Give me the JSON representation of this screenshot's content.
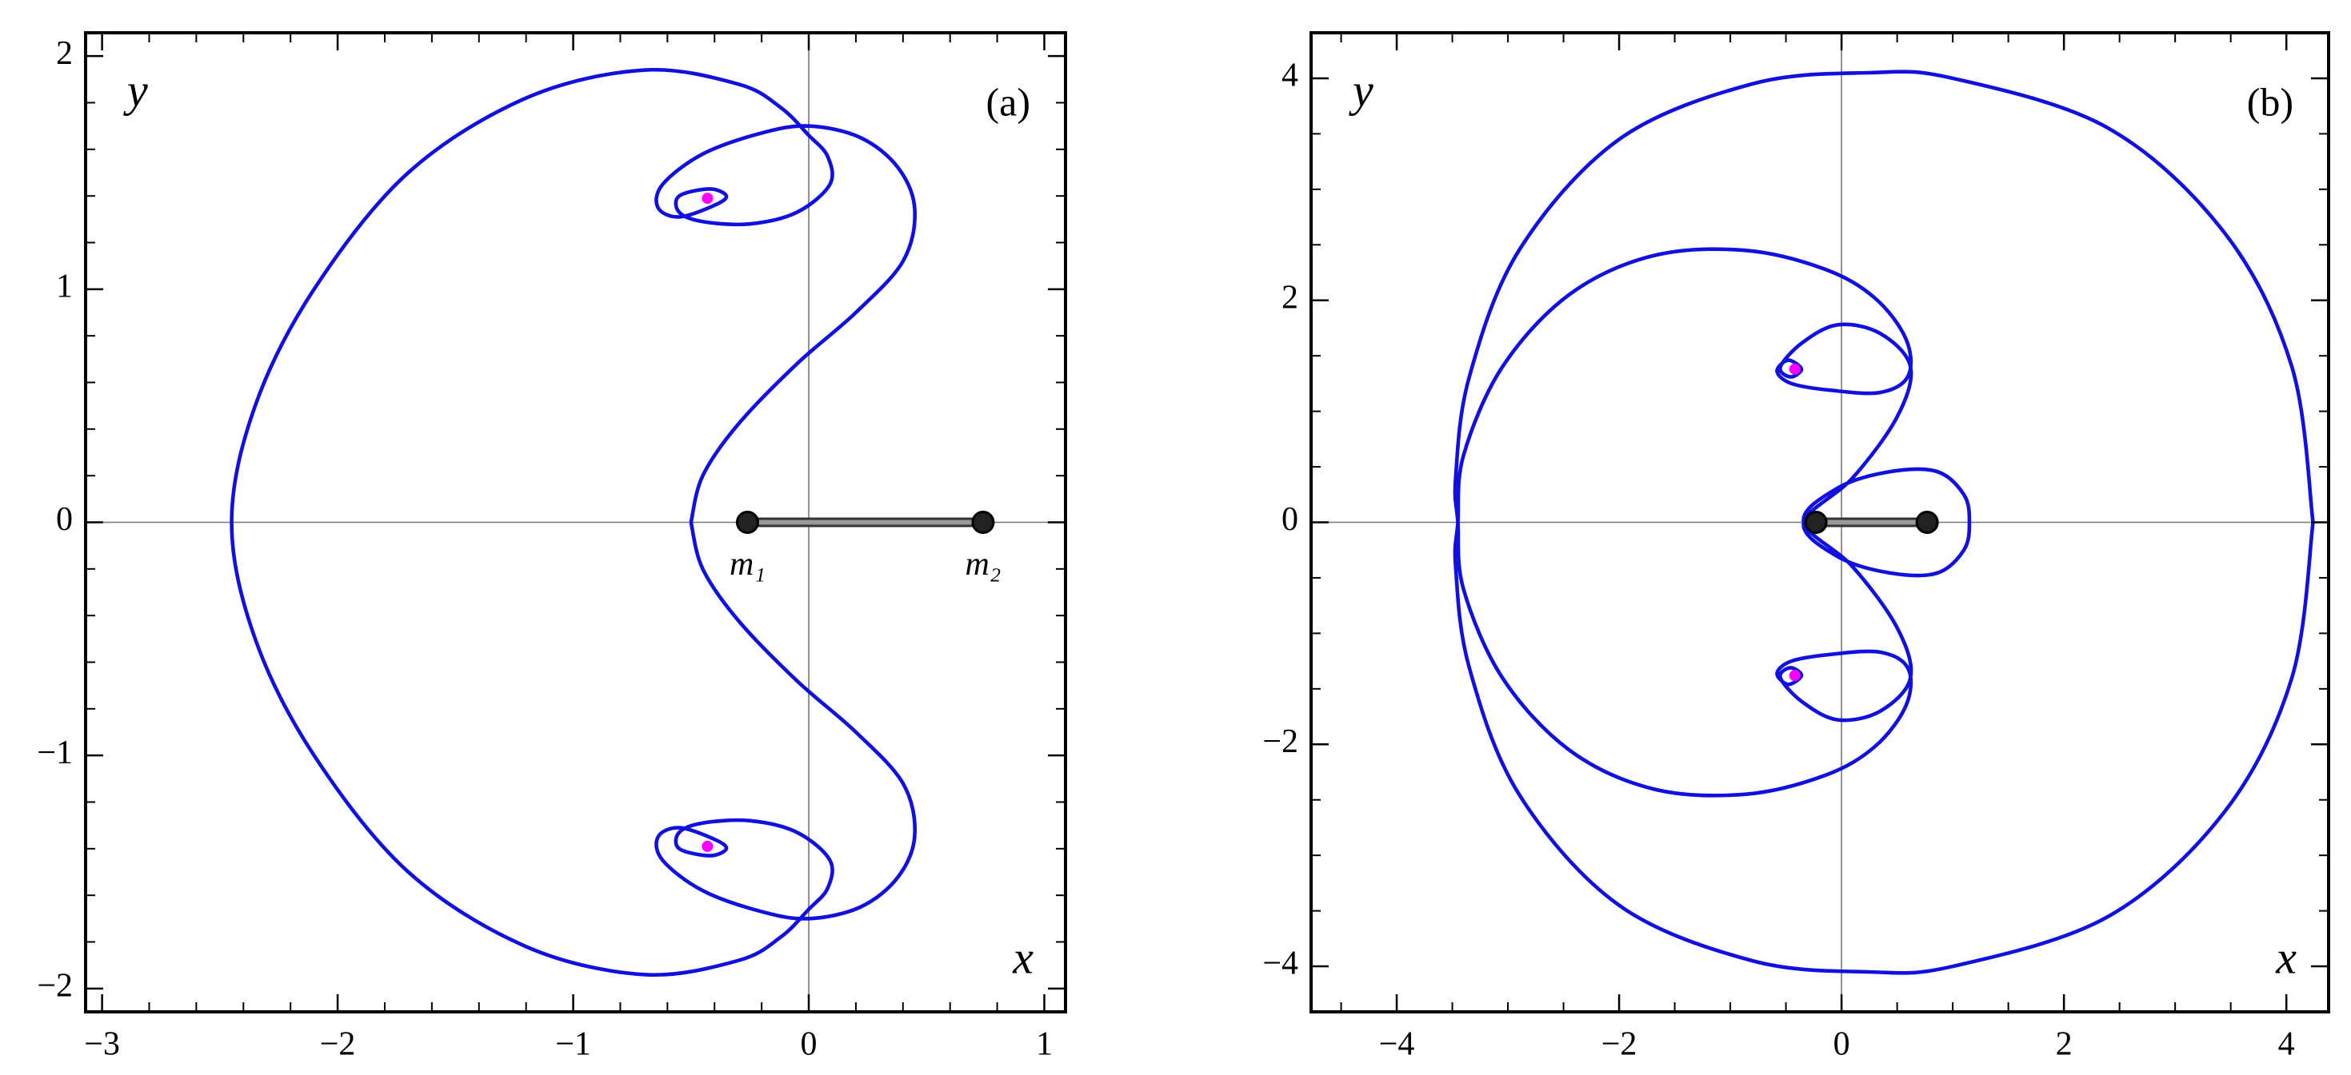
{
  "chart_data": [
    {
      "type": "line",
      "label": "(a)",
      "xlabel": "x",
      "ylabel": "y",
      "xlim": [
        -3.07,
        1.09
      ],
      "ylim": [
        -2.1,
        2.1
      ],
      "xticks": [
        {
          "value": -3,
          "label": "−3"
        },
        {
          "value": -2,
          "label": "−2"
        },
        {
          "value": -1,
          "label": "−1"
        },
        0,
        1
      ],
      "yticks": [
        {
          "value": -2,
          "label": "−2"
        },
        {
          "value": -1,
          "label": "−1"
        },
        0,
        1,
        2
      ],
      "xminor": [
        -2.8,
        -2.6,
        -2.4,
        -2.2,
        -1.8,
        -1.6,
        -1.4,
        -1.2,
        -0.8,
        -0.6,
        -0.4,
        -0.2,
        0.2,
        0.4,
        0.6,
        0.8
      ],
      "yminor": [
        -1.8,
        -1.6,
        -1.4,
        -1.2,
        -0.8,
        -0.6,
        -0.4,
        -0.2,
        0.2,
        0.4,
        0.6,
        0.8,
        1.2,
        1.4,
        1.6,
        1.8
      ],
      "zero_axes": true,
      "series": [
        {
          "mode": "line",
          "color": "#1010e0",
          "x": [
            -0.5,
            -0.45,
            -0.3,
            -0.05,
            0.2,
            0.4,
            0.45,
            0.38,
            0.22,
            0.0,
            -0.2,
            -0.45,
            -0.62,
            -0.64,
            -0.55,
            -0.4,
            -0.35,
            -0.42,
            -0.55,
            -0.55,
            -0.45,
            -0.25,
            -0.05,
            0.09,
            0.08,
            0.0,
            -0.12,
            -0.3,
            -0.7,
            -1.2,
            -1.7,
            -2.1,
            -2.35,
            -2.45,
            -2.35,
            -2.1,
            -1.7,
            -1.2,
            -0.7,
            -0.3,
            -0.12,
            0.0,
            0.08,
            0.09,
            -0.05,
            -0.25,
            -0.45,
            -0.55,
            -0.55,
            -0.42,
            -0.35,
            -0.4,
            -0.55,
            -0.64,
            -0.62,
            -0.45,
            -0.2,
            0.0,
            0.22,
            0.38,
            0.45,
            0.4,
            0.2,
            -0.05,
            -0.3,
            -0.45,
            -0.5
          ],
          "values": [
            0.0,
            0.2,
            0.42,
            0.68,
            0.9,
            1.12,
            1.34,
            1.52,
            1.65,
            1.7,
            1.67,
            1.58,
            1.45,
            1.35,
            1.31,
            1.36,
            1.4,
            1.43,
            1.4,
            1.33,
            1.29,
            1.28,
            1.33,
            1.45,
            1.57,
            1.66,
            1.78,
            1.88,
            1.94,
            1.82,
            1.5,
            1.0,
            0.5,
            0.0,
            -0.5,
            -1.0,
            -1.5,
            -1.82,
            -1.94,
            -1.88,
            -1.78,
            -1.66,
            -1.57,
            -1.45,
            -1.33,
            -1.28,
            -1.29,
            -1.33,
            -1.4,
            -1.43,
            -1.4,
            -1.36,
            -1.31,
            -1.35,
            -1.45,
            -1.58,
            -1.67,
            -1.7,
            -1.65,
            -1.52,
            -1.34,
            -1.12,
            -0.9,
            -0.68,
            -0.42,
            -0.2,
            0.0
          ]
        },
        {
          "mode": "markers",
          "connect": true,
          "color": "#000000",
          "x": [
            -0.26,
            0.74
          ],
          "values": [
            0,
            0
          ],
          "point_labels": [
            "m₁",
            "m₂"
          ]
        },
        {
          "mode": "markers",
          "color": "#ff00ff",
          "x": [
            -0.43,
            -0.43
          ],
          "values": [
            1.39,
            -1.39
          ]
        }
      ]
    },
    {
      "type": "line",
      "label": "(b)",
      "xlabel": "x",
      "ylabel": "y",
      "xlim": [
        -4.77,
        4.38
      ],
      "ylim": [
        -4.41,
        4.41
      ],
      "xticks": [
        {
          "value": -4,
          "label": "−4"
        },
        {
          "value": -2,
          "label": "−2"
        },
        0,
        2,
        4
      ],
      "yticks": [
        {
          "value": -4,
          "label": "−4"
        },
        {
          "value": -2,
          "label": "−2"
        },
        0,
        2,
        4
      ],
      "xminor": [
        -4.5,
        -3.5,
        -3,
        -2.5,
        -1.5,
        -1,
        -0.5,
        0.5,
        1,
        1.5,
        2.5,
        3,
        3.5
      ],
      "yminor": [
        -3.5,
        -3,
        -2.5,
        -1.5,
        -1,
        -0.5,
        0.5,
        1,
        1.5,
        2.5,
        3,
        3.5
      ],
      "zero_axes": true,
      "series": [
        {
          "mode": "line",
          "color": "#1010e0",
          "x": [
            4.24,
            4.05,
            3.45,
            2.4,
            1.0,
            0.24,
            -0.8,
            -2.0,
            -2.9,
            -3.35,
            -3.47,
            -3.45,
            -3.4,
            -3.05,
            -2.45,
            -1.7,
            -0.87,
            -0.15,
            0.3,
            0.58,
            0.6,
            0.35,
            -0.1,
            -0.45,
            -0.58,
            -0.48,
            -0.36,
            -0.46,
            -0.55,
            -0.35,
            -0.03,
            0.35,
            0.62,
            0.5,
            0.1,
            -0.34,
            -0.05,
            0.4,
            0.85,
            1.1,
            1.15,
            1.1,
            0.85,
            0.4,
            -0.05,
            -0.34,
            0.1,
            0.5,
            0.62,
            0.35,
            -0.03,
            -0.35,
            -0.55,
            -0.46,
            -0.36,
            -0.48,
            -0.58,
            -0.45,
            -0.1,
            0.35,
            0.6,
            0.58,
            0.3,
            -0.15,
            -0.87,
            -1.7,
            -2.45,
            -3.05,
            -3.4,
            -3.45,
            -3.47,
            -3.35,
            -2.9,
            -2.0,
            -0.8,
            0.24,
            1.0,
            2.4,
            3.45,
            4.05,
            4.24
          ],
          "values": [
            0.0,
            1.4,
            2.6,
            3.55,
            4.0,
            4.05,
            3.95,
            3.45,
            2.45,
            1.3,
            0.4,
            0.0,
            -0.6,
            -1.4,
            -2.05,
            -2.4,
            -2.45,
            -2.28,
            -2.02,
            -1.65,
            -1.32,
            -1.17,
            -1.19,
            -1.25,
            -1.36,
            -1.46,
            -1.38,
            -1.31,
            -1.4,
            -1.62,
            -1.78,
            -1.7,
            -1.4,
            -0.95,
            -0.4,
            0.0,
            0.3,
            0.45,
            0.46,
            0.25,
            0.0,
            -0.25,
            -0.46,
            -0.45,
            -0.3,
            0.0,
            0.4,
            0.95,
            1.4,
            1.7,
            1.78,
            1.62,
            1.4,
            1.31,
            1.38,
            1.46,
            1.36,
            1.25,
            1.19,
            1.17,
            1.32,
            1.65,
            2.02,
            2.28,
            2.45,
            2.4,
            2.05,
            1.4,
            0.6,
            0.0,
            -0.4,
            -1.3,
            -2.45,
            -3.45,
            -3.95,
            -4.05,
            -4.0,
            -3.55,
            -2.6,
            -1.4,
            0.0
          ]
        },
        {
          "mode": "markers",
          "connect": true,
          "color": "#000000",
          "x": [
            -0.23,
            0.77
          ],
          "values": [
            0,
            0
          ]
        },
        {
          "mode": "markers",
          "color": "#ff00ff",
          "x": [
            -0.42,
            -0.42
          ],
          "values": [
            1.38,
            -1.38
          ]
        }
      ]
    }
  ]
}
